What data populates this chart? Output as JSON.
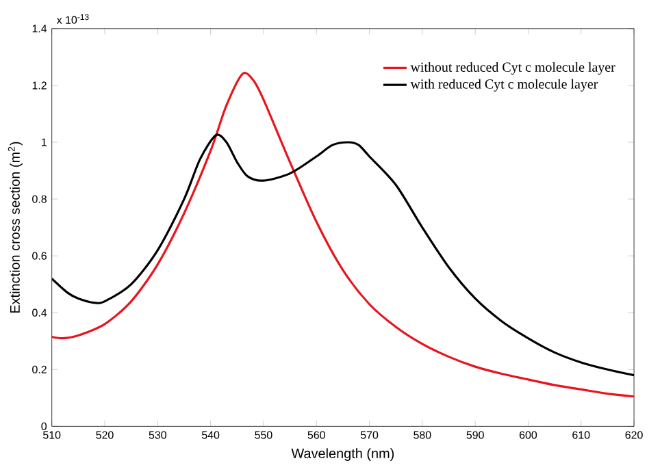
{
  "chart_data": {
    "type": "line",
    "xlabel": "Wavelength (nm)",
    "ylabel": "Extinction cross section (m$^{2}$)",
    "annotations": [
      "x 10$^{-13}$"
    ],
    "xlim": [
      510,
      620
    ],
    "xticks": [
      510,
      520,
      530,
      540,
      550,
      560,
      570,
      580,
      590,
      600,
      610,
      620
    ],
    "ylim": [
      0,
      1.4
    ],
    "yticks": [
      0,
      0.2,
      0.4,
      0.6,
      0.8,
      1,
      1.2,
      1.4
    ],
    "legend": "top right",
    "grid": false,
    "marker": "none",
    "line_style": "solid",
    "series": [
      {
        "name": "without reduced Cyt c molecule layer",
        "color": "#e8141c",
        "x": [
          510,
          512,
          515,
          520,
          525,
          530,
          535,
          540,
          543,
          546,
          548,
          550,
          555,
          560,
          565,
          570,
          575,
          580,
          585,
          590,
          595,
          600,
          605,
          610,
          615,
          620
        ],
        "values": [
          0.315,
          0.31,
          0.32,
          0.36,
          0.44,
          0.57,
          0.75,
          0.97,
          1.13,
          1.24,
          1.22,
          1.15,
          0.93,
          0.72,
          0.55,
          0.43,
          0.35,
          0.29,
          0.245,
          0.21,
          0.185,
          0.165,
          0.145,
          0.13,
          0.115,
          0.105
        ]
      },
      {
        "name": "with reduced Cyt c molecule layer",
        "color": "#000000",
        "x": [
          510,
          513,
          515,
          518,
          520,
          525,
          530,
          535,
          538,
          541,
          543,
          545,
          547,
          550,
          555,
          560,
          563,
          566,
          568,
          570,
          575,
          580,
          585,
          590,
          595,
          600,
          605,
          610,
          615,
          620
        ],
        "values": [
          0.52,
          0.47,
          0.45,
          0.435,
          0.44,
          0.5,
          0.62,
          0.8,
          0.94,
          1.025,
          1.0,
          0.93,
          0.88,
          0.865,
          0.89,
          0.95,
          0.99,
          1.0,
          0.99,
          0.95,
          0.85,
          0.7,
          0.56,
          0.45,
          0.37,
          0.31,
          0.26,
          0.225,
          0.2,
          0.18
        ]
      }
    ]
  }
}
